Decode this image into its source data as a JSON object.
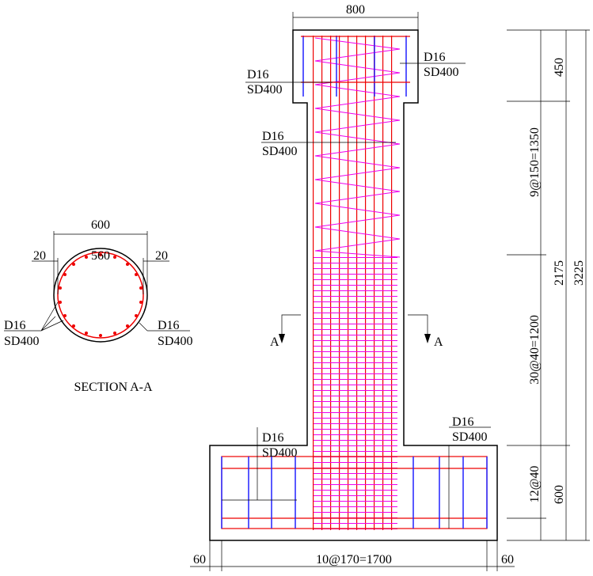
{
  "section": {
    "width": "600",
    "cover_left": "20",
    "inner": "560",
    "cover_right": "20",
    "title": "SECTION A-A",
    "labels": [
      {
        "bar": "D16",
        "grade": "SD400"
      },
      {
        "bar": "D16",
        "grade": "SD400"
      }
    ]
  },
  "elevation": {
    "top_width": "800",
    "labels": [
      {
        "bar": "D16",
        "grade": "SD400"
      },
      {
        "bar": "D16",
        "grade": "SD400"
      },
      {
        "bar": "D16",
        "grade": "SD400"
      },
      {
        "bar": "D16",
        "grade": "SD400"
      },
      {
        "bar": "D16",
        "grade": "SD400"
      }
    ],
    "cut_marks": [
      "A",
      "A"
    ],
    "spacing": {
      "top": "9@150=1350",
      "middle": "30@40=1200",
      "bottom": "12@40"
    },
    "heights": {
      "cap": "450",
      "column": "2175",
      "base": "600",
      "total": "3225"
    },
    "bottom": {
      "left": "60",
      "center": "10@170=1700",
      "right": "60"
    }
  }
}
